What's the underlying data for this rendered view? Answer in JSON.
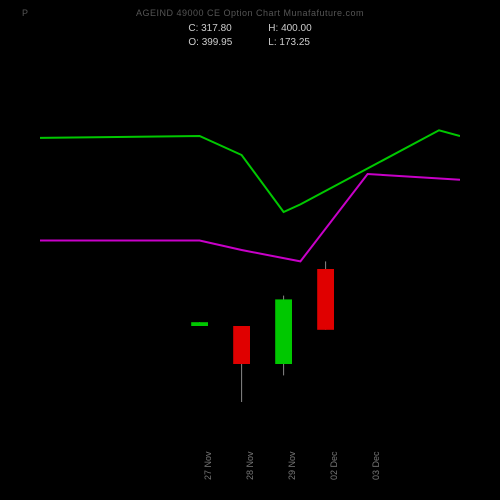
{
  "header": {
    "left_marker": "P",
    "title_main": "AGEIND 49000  CE Option Chart Munafafuture.com"
  },
  "ohlc": {
    "C_label": "C:",
    "C_value": "317.80",
    "H_label": "H:",
    "H_value": "400.00",
    "O_label": "O:",
    "O_value": "399.95",
    "L_label": "L:",
    "L_value": "173.25"
  },
  "chart": {
    "type": "candlestick-with-lines",
    "background_color": "#000000",
    "line_series": [
      {
        "name": "upper-band",
        "color": "#00c800",
        "stroke_width": 2,
        "points": [
          {
            "x": 0.0,
            "y": 0.795
          },
          {
            "x": 0.38,
            "y": 0.8
          },
          {
            "x": 0.48,
            "y": 0.75
          },
          {
            "x": 0.58,
            "y": 0.6
          },
          {
            "x": 0.62,
            "y": 0.62
          },
          {
            "x": 0.95,
            "y": 0.815
          },
          {
            "x": 1.0,
            "y": 0.8
          }
        ]
      },
      {
        "name": "lower-band",
        "color": "#c800c8",
        "stroke_width": 2,
        "points": [
          {
            "x": 0.0,
            "y": 0.525
          },
          {
            "x": 0.38,
            "y": 0.525
          },
          {
            "x": 0.48,
            "y": 0.5
          },
          {
            "x": 0.62,
            "y": 0.47
          },
          {
            "x": 0.78,
            "y": 0.7
          },
          {
            "x": 1.0,
            "y": 0.685
          }
        ]
      }
    ],
    "candles": [
      {
        "x": 0.38,
        "open": 0.3,
        "close": 0.31,
        "high": 0.31,
        "low": 0.3,
        "up": true
      },
      {
        "x": 0.48,
        "open": 0.3,
        "close": 0.2,
        "high": 0.3,
        "low": 0.1,
        "up": false
      },
      {
        "x": 0.58,
        "open": 0.2,
        "close": 0.37,
        "high": 0.38,
        "low": 0.17,
        "up": true
      },
      {
        "x": 0.68,
        "open": 0.45,
        "close": 0.29,
        "high": 0.47,
        "low": 0.29,
        "up": false
      }
    ],
    "candle_width": 0.04,
    "up_color": "#00c800",
    "down_color": "#e00000",
    "wick_color": "#888888",
    "x_axis_labels": [
      "27 Nov",
      "28 Nov",
      "29 Nov",
      "02 Dec",
      "03 Dec"
    ],
    "x_axis_positions": [
      0.38,
      0.48,
      0.58,
      0.68,
      0.78
    ]
  }
}
